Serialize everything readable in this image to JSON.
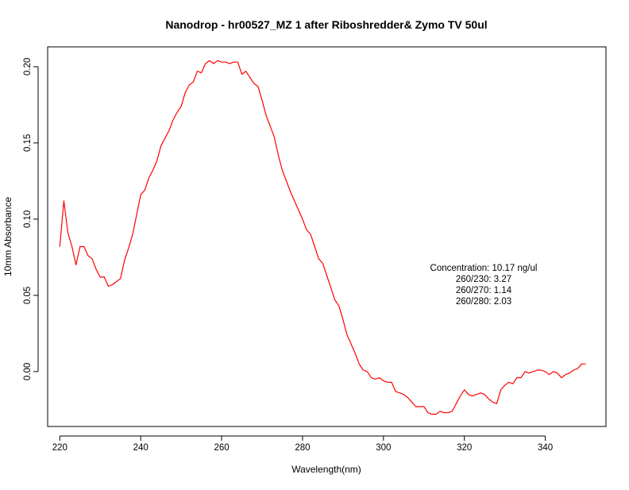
{
  "chart_data": {
    "type": "line",
    "title": "Nanodrop - hr00527_MZ 1 after Riboshredder& Zymo  TV 50ul",
    "xlabel": "Wavelength(nm)",
    "ylabel": "10mm Absorbance",
    "xlim": [
      217,
      355
    ],
    "ylim": [
      -0.036,
      0.213
    ],
    "xticks": [
      220,
      240,
      260,
      280,
      300,
      320,
      340
    ],
    "xtick_labels": [
      "220",
      "240",
      "260",
      "280",
      "300",
      "320",
      "340"
    ],
    "yticks": [
      0.0,
      0.05,
      0.1,
      0.15,
      0.2
    ],
    "ytick_labels": [
      "0.00",
      "0.05",
      "0.10",
      "0.15",
      "0.20"
    ],
    "grid": false,
    "line_color": "#ff0000",
    "annotations": [
      "Concentration: 10.17 ng/ul",
      "260/230: 3.27",
      "260/270: 1.14",
      "260/280: 2.03"
    ],
    "series": [
      {
        "x": [
          220,
          221,
          222,
          223,
          224,
          225,
          226,
          227,
          228,
          229,
          230,
          231,
          232,
          233,
          234,
          235,
          236,
          237,
          238,
          239,
          240,
          241,
          242,
          243,
          244,
          245,
          246,
          247,
          248,
          249,
          250,
          251,
          252,
          253,
          254,
          255,
          256,
          257,
          258,
          259,
          260,
          261,
          262,
          263,
          264,
          265,
          266,
          267,
          268,
          269,
          270,
          271,
          272,
          273,
          274,
          275,
          276,
          277,
          278,
          279,
          280,
          281,
          282,
          283,
          284,
          285,
          286,
          287,
          288,
          289,
          290,
          291,
          292,
          293,
          294,
          295,
          296,
          297,
          298,
          299,
          300,
          301,
          302,
          303,
          304,
          305,
          306,
          307,
          308,
          309,
          310,
          311,
          312,
          313,
          314,
          315,
          316,
          317,
          318,
          319,
          320,
          321,
          322,
          323,
          324,
          325,
          326,
          327,
          328,
          329,
          330,
          331,
          332,
          333,
          334,
          335,
          336,
          337,
          338,
          339,
          340,
          341,
          342,
          343,
          344,
          345,
          346,
          347,
          348,
          349,
          350
        ],
        "values": [
          0.082,
          0.112,
          0.091,
          0.082,
          0.07,
          0.082,
          0.082,
          0.076,
          0.074,
          0.067,
          0.062,
          0.062,
          0.056,
          0.057,
          0.059,
          0.061,
          0.073,
          0.081,
          0.09,
          0.103,
          0.116,
          0.119,
          0.127,
          0.132,
          0.138,
          0.148,
          0.153,
          0.158,
          0.165,
          0.17,
          0.174,
          0.183,
          0.188,
          0.19,
          0.197,
          0.196,
          0.202,
          0.204,
          0.202,
          0.204,
          0.203,
          0.203,
          0.202,
          0.203,
          0.203,
          0.195,
          0.197,
          0.193,
          0.189,
          0.187,
          0.178,
          0.168,
          0.161,
          0.154,
          0.142,
          0.132,
          0.125,
          0.118,
          0.112,
          0.106,
          0.1,
          0.093,
          0.09,
          0.082,
          0.074,
          0.071,
          0.063,
          0.055,
          0.047,
          0.043,
          0.034,
          0.024,
          0.018,
          0.012,
          0.005,
          0.001,
          0.0,
          -0.004,
          -0.005,
          -0.004,
          -0.006,
          -0.007,
          -0.007,
          -0.013,
          -0.014,
          -0.015,
          -0.017,
          -0.02,
          -0.023,
          -0.023,
          -0.023,
          -0.027,
          -0.028,
          -0.028,
          -0.026,
          -0.027,
          -0.027,
          -0.026,
          -0.021,
          -0.016,
          -0.012,
          -0.015,
          -0.016,
          -0.015,
          -0.014,
          -0.015,
          -0.018,
          -0.02,
          -0.021,
          -0.012,
          -0.009,
          -0.007,
          -0.008,
          -0.004,
          -0.004,
          0.0,
          -0.001,
          0.0,
          0.001,
          0.001,
          0.0,
          -0.002,
          0.0,
          -0.001,
          -0.004,
          -0.002,
          -0.001,
          0.001,
          0.002,
          0.005,
          0.005
        ]
      }
    ]
  }
}
